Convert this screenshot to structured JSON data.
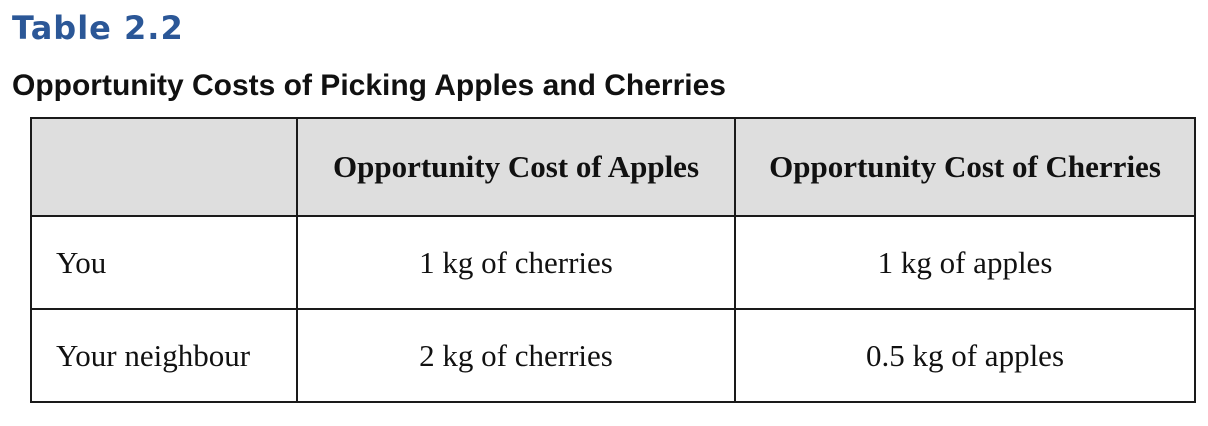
{
  "table_label": "Table 2.2",
  "caption": "Opportunity Costs of Picking Apples and Cherries",
  "table": {
    "headers": [
      "",
      "Opportunity Cost of Apples",
      "Opportunity Cost of Cherries"
    ],
    "rows": [
      [
        "You",
        "1 kg of cherries",
        "1 kg of apples"
      ],
      [
        "Your neighbour",
        "2 kg of cherries",
        "0.5 kg of apples"
      ]
    ]
  },
  "colors": {
    "label": "#2b5797",
    "header_bg": "#dedede",
    "border": "#1a1a1a",
    "text": "#111111"
  }
}
